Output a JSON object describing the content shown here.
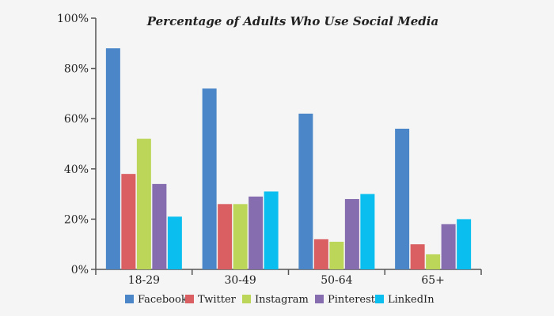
{
  "chart_data": {
    "type": "bar",
    "title": "Percentage of Adults Who Use Social Media",
    "xlabel": "",
    "ylabel": "",
    "categories": [
      "18-29",
      "30-49",
      "50-64",
      "65+"
    ],
    "series": [
      {
        "name": "Facebook",
        "color": "#4a86c8",
        "values": [
          88,
          72,
          62,
          56
        ]
      },
      {
        "name": "Twitter",
        "color": "#d95f62",
        "values": [
          38,
          26,
          12,
          10
        ]
      },
      {
        "name": "Instagram",
        "color": "#bcd65a",
        "values": [
          52,
          26,
          11,
          6
        ]
      },
      {
        "name": "Pinterest",
        "color": "#866db0",
        "values": [
          34,
          29,
          28,
          18
        ]
      },
      {
        "name": "LinkedIn",
        "color": "#0abfef",
        "values": [
          21,
          31,
          30,
          20
        ]
      }
    ],
    "ylim": [
      0,
      100
    ],
    "yticks": [
      "0%",
      "20%",
      "40%",
      "60%",
      "80%",
      "100%"
    ],
    "ytick_values": [
      0,
      20,
      40,
      60,
      80,
      100
    ],
    "grid": false,
    "legend": "bottom"
  }
}
